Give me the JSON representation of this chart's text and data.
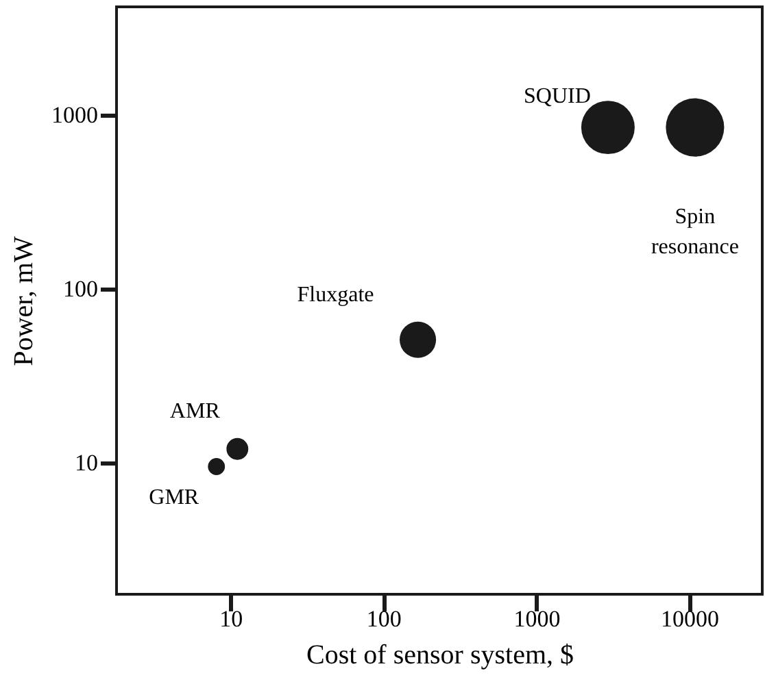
{
  "chart_data": {
    "type": "bubble",
    "xlabel": "Cost of sensor system, $",
    "ylabel": "Power, mW",
    "series": [
      {
        "name": "GMR",
        "color": "#1a1a1a",
        "x": [
          8.1
        ],
        "values": [
          9.5
        ],
        "sizes": [
          0.085
        ]
      },
      {
        "name": "AMR",
        "color": "#1a1a1a",
        "x": [
          11.1
        ],
        "values": [
          12
        ],
        "sizes": [
          0.14
        ]
      },
      {
        "name": "Fluxgate",
        "color": "#1a1a1a",
        "x": [
          168
        ],
        "values": [
          51
        ],
        "sizes": [
          0.39
        ]
      },
      {
        "name": "SQUID",
        "color": "#1a1a1a",
        "x": [
          2940
        ],
        "values": [
          850
        ],
        "sizes": [
          0.84
        ]
      },
      {
        "name": "Spin resonance",
        "color": "#1a1a1a",
        "x": [
          10900
        ],
        "values": [
          850
        ],
        "sizes": [
          1
        ]
      }
    ],
    "log": "xy",
    "xlim": [
      1.8,
      30000
    ],
    "ylim": [
      1.75,
      4200
    ],
    "xticks": [
      10,
      100,
      1000,
      10000
    ],
    "yticks": [
      10,
      100,
      1000
    ],
    "grid": false
  }
}
